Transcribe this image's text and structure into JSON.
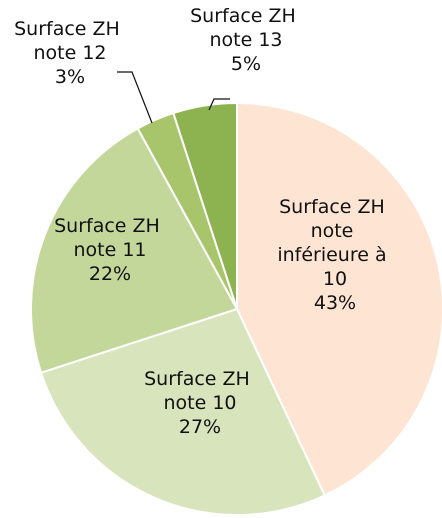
{
  "chart_data": {
    "type": "pie",
    "categories": [
      "Surface ZH note inférieure à 10",
      "Surface ZH note 10",
      "Surface ZH note 11",
      "Surface ZH note 12",
      "Surface ZH note 13"
    ],
    "values": [
      43,
      27,
      22,
      3,
      5
    ],
    "value_labels": [
      "43%",
      "27%",
      "22%",
      "3%",
      "5%"
    ],
    "colors": [
      "#fde4d3",
      "#d8e4bc",
      "#c4d79b",
      "#a9c56c",
      "#8db350"
    ]
  }
}
